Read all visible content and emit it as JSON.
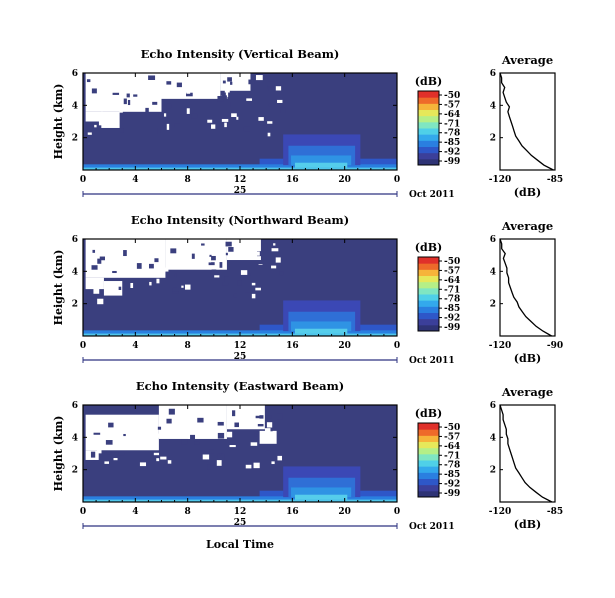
{
  "figure": {
    "xlabel": "Local Time",
    "date_label": "Oct 2011",
    "day_label": "25"
  },
  "colors": {
    "background_fill": "#3a3f7e",
    "frame": "#000000",
    "colorbar": [
      "#2e3375",
      "#3b3f9a",
      "#2e57c8",
      "#2a7fe0",
      "#33a9ec",
      "#4fd0e8",
      "#7fe6c2",
      "#b5ef87",
      "#e6e85a",
      "#f6b43a",
      "#ee6a2a",
      "#e0302a"
    ]
  },
  "chart_data": [
    {
      "type": "heatmap",
      "title": "Echo Intensity (Vertical Beam)",
      "ylabel": "Height (km)",
      "x_ticks": [
        "0",
        "4",
        "8",
        "12",
        "16",
        "20",
        "0"
      ],
      "y_ticks": [
        "2",
        "4",
        "6"
      ],
      "xlim": [
        0,
        24
      ],
      "ylim": [
        0,
        6
      ],
      "colorbar": {
        "label": "(dB)",
        "ticks": [
          "-50",
          "-57",
          "-64",
          "-71",
          "-78",
          "-85",
          "-92",
          "-99"
        ]
      },
      "average_profile": {
        "title": "Average",
        "xlabel": "(dB)",
        "x_ticks": [
          "-120",
          "-85"
        ],
        "xlim": [
          -120,
          -85
        ],
        "y_ticks": [
          "2",
          "4",
          "6"
        ],
        "ylim": [
          0,
          6
        ],
        "height": [
          0.0,
          0.3,
          0.6,
          0.9,
          1.2,
          1.5,
          1.8,
          2.1,
          2.4,
          2.7,
          3.0,
          3.3,
          3.6,
          3.9,
          4.2,
          4.5,
          4.8,
          5.1,
          5.4,
          5.7,
          6.0
        ],
        "db": [
          -86,
          -92,
          -96,
          -100,
          -103,
          -106,
          -108,
          -110,
          -111,
          -112,
          -113,
          -114,
          -115,
          -114,
          -116,
          -117,
          -118,
          -117,
          -119,
          -119,
          -120
        ]
      }
    },
    {
      "type": "heatmap",
      "title": "Echo Intensity (Northward Beam)",
      "ylabel": "Height (km)",
      "x_ticks": [
        "0",
        "4",
        "8",
        "12",
        "16",
        "20",
        "0"
      ],
      "y_ticks": [
        "2",
        "4",
        "6"
      ],
      "xlim": [
        0,
        24
      ],
      "ylim": [
        0,
        6
      ],
      "colorbar": {
        "label": "(dB)",
        "ticks": [
          "-50",
          "-57",
          "-64",
          "-71",
          "-78",
          "-85",
          "-92",
          "-99"
        ]
      },
      "average_profile": {
        "title": "Average",
        "xlabel": "(dB)",
        "x_ticks": [
          "-120",
          "-90"
        ],
        "xlim": [
          -120,
          -88
        ],
        "y_ticks": [
          "2",
          "4",
          "6"
        ],
        "ylim": [
          0,
          6
        ],
        "height": [
          0.0,
          0.3,
          0.6,
          0.9,
          1.2,
          1.5,
          1.8,
          2.1,
          2.4,
          2.7,
          3.0,
          3.3,
          3.6,
          3.9,
          4.2,
          4.5,
          4.8,
          5.1,
          5.4,
          5.7,
          6.0
        ],
        "db": [
          -90,
          -95,
          -99,
          -102,
          -105,
          -107,
          -109,
          -110,
          -112,
          -113,
          -114,
          -115,
          -115,
          -116,
          -116,
          -117,
          -118,
          -117,
          -119,
          -119,
          -120
        ]
      }
    },
    {
      "type": "heatmap",
      "title": "Echo Intensity (Eastward Beam)",
      "ylabel": "Height (km)",
      "x_ticks": [
        "0",
        "4",
        "8",
        "12",
        "16",
        "20",
        "0"
      ],
      "y_ticks": [
        "2",
        "4",
        "6"
      ],
      "xlim": [
        0,
        24
      ],
      "ylim": [
        0,
        6
      ],
      "colorbar": {
        "label": "(dB)",
        "ticks": [
          "-50",
          "-57",
          "-64",
          "-71",
          "-78",
          "-85",
          "-92",
          "-99"
        ]
      },
      "average_profile": {
        "title": "Average",
        "xlabel": "(dB)",
        "x_ticks": [
          "-120",
          "-85"
        ],
        "xlim": [
          -120,
          -85
        ],
        "y_ticks": [
          "2",
          "4",
          "6"
        ],
        "ylim": [
          0,
          6
        ],
        "height": [
          0.0,
          0.3,
          0.6,
          0.9,
          1.2,
          1.5,
          1.8,
          2.1,
          2.4,
          2.7,
          3.0,
          3.3,
          3.6,
          3.9,
          4.2,
          4.5,
          4.8,
          5.1,
          5.4,
          5.7,
          6.0
        ],
        "db": [
          -87,
          -93,
          -97,
          -101,
          -104,
          -106,
          -108,
          -110,
          -111,
          -112,
          -113,
          -114,
          -115,
          -115,
          -116,
          -116,
          -117,
          -118,
          -118,
          -119,
          -120
        ]
      }
    }
  ]
}
